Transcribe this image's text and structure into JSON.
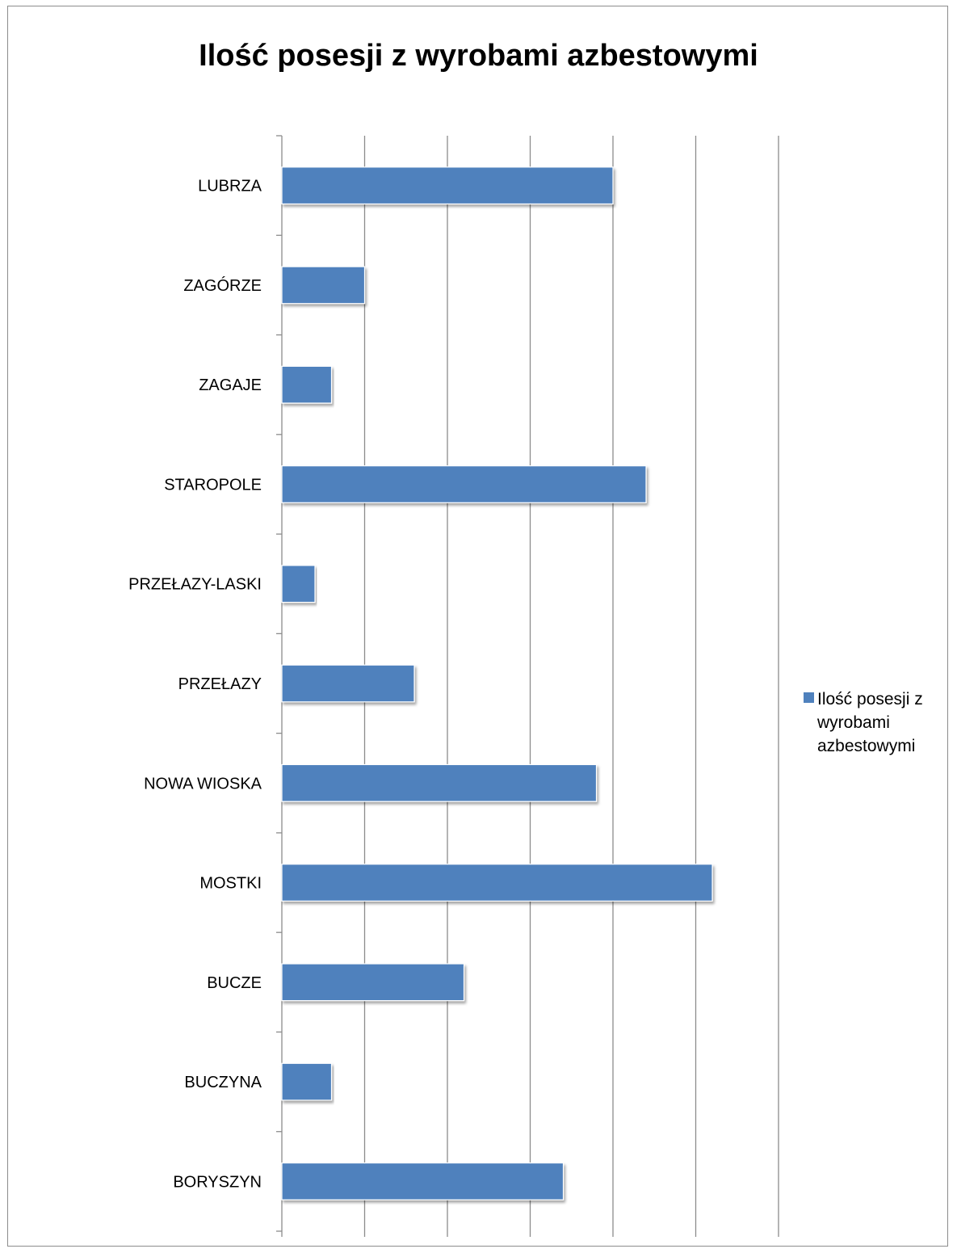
{
  "chart_data": {
    "type": "bar",
    "orientation": "horizontal",
    "title": "Ilość posesji z wyrobami azbestowymi",
    "categories": [
      "LUBRZA",
      "ZAGÓRZE",
      "ZAGAJE",
      "STAROPOLE",
      "PRZEŁAZY-LASKI",
      "PRZEŁAZY",
      "NOWA WIOSKA",
      "MOSTKI",
      "BUCZE",
      "BUCZYNA",
      "BORYSZYN"
    ],
    "series": [
      {
        "name": "Ilość posesji z wyrobami azbestowymi",
        "values": [
          20,
          5,
          3,
          22,
          2,
          8,
          19,
          26,
          11,
          3,
          17
        ],
        "color": "#4f81bd"
      }
    ],
    "xlim": [
      0,
      30
    ],
    "x_ticks": [
      0,
      5,
      10,
      15,
      20,
      25,
      30
    ],
    "grid": true,
    "legend_position": "right"
  }
}
